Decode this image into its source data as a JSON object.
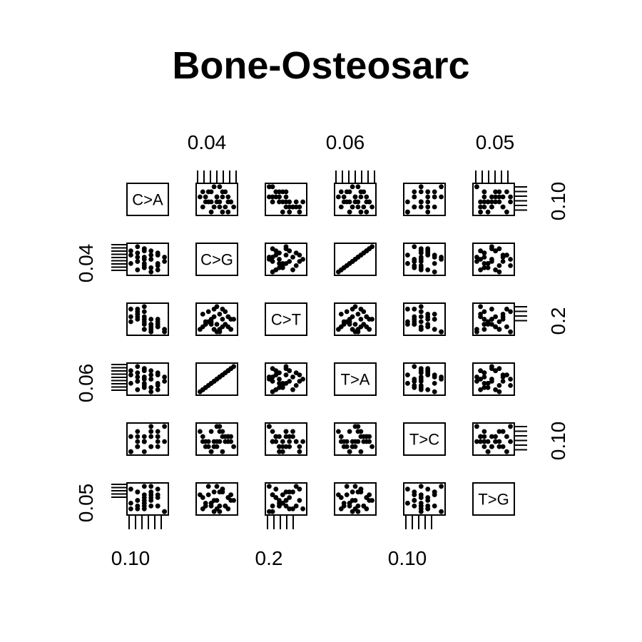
{
  "chart_data": {
    "type": "scatter",
    "title": "Bone-Osteosarc",
    "variables": [
      "C>A",
      "C>G",
      "C>T",
      "T>A",
      "T>C",
      "T>G"
    ],
    "layout": "pairs-matrix",
    "axes": {
      "top": [
        {
          "column": 2,
          "label": "0.04"
        },
        {
          "column": 4,
          "label": "0.06"
        },
        {
          "column": 6,
          "label": "0.05"
        }
      ],
      "bottom": [
        {
          "column": 1,
          "label": "0.10"
        },
        {
          "column": 3,
          "label": "0.2"
        },
        {
          "column": 5,
          "label": "0.10"
        }
      ],
      "left": [
        {
          "row": 2,
          "label": "0.04"
        },
        {
          "row": 4,
          "label": "0.06"
        },
        {
          "row": 6,
          "label": "0.05"
        }
      ],
      "right": [
        {
          "row": 1,
          "label": "0.10"
        },
        {
          "row": 3,
          "label": "0.2"
        },
        {
          "row": 5,
          "label": "0.10"
        }
      ]
    },
    "points": [
      [
        0.09,
        0.035,
        0.28,
        0.055,
        0.11,
        0.045
      ],
      [
        0.11,
        0.04,
        0.24,
        0.06,
        0.09,
        0.048
      ],
      [
        0.1,
        0.045,
        0.22,
        0.065,
        0.1,
        0.05
      ],
      [
        0.12,
        0.038,
        0.26,
        0.058,
        0.12,
        0.046
      ],
      [
        0.08,
        0.042,
        0.3,
        0.062,
        0.08,
        0.052
      ],
      [
        0.1,
        0.036,
        0.25,
        0.056,
        0.1,
        0.047
      ],
      [
        0.11,
        0.044,
        0.23,
        0.064,
        0.11,
        0.049
      ],
      [
        0.09,
        0.039,
        0.27,
        0.059,
        0.09,
        0.051
      ],
      [
        0.13,
        0.041,
        0.21,
        0.061,
        0.13,
        0.044
      ],
      [
        0.1,
        0.037,
        0.29,
        0.057,
        0.1,
        0.053
      ],
      [
        0.12,
        0.043,
        0.24,
        0.063,
        0.11,
        0.046
      ],
      [
        0.09,
        0.046,
        0.26,
        0.066,
        0.09,
        0.048
      ],
      [
        0.11,
        0.034,
        0.22,
        0.054,
        0.12,
        0.05
      ],
      [
        0.1,
        0.04,
        0.31,
        0.06,
        0.1,
        0.045
      ],
      [
        0.08,
        0.038,
        0.25,
        0.058,
        0.08,
        0.047
      ],
      [
        0.12,
        0.042,
        0.23,
        0.062,
        0.11,
        0.052
      ],
      [
        0.1,
        0.044,
        0.27,
        0.064,
        0.1,
        0.049
      ],
      [
        0.11,
        0.036,
        0.24,
        0.056,
        0.09,
        0.046
      ],
      [
        0.09,
        0.041,
        0.28,
        0.061,
        0.12,
        0.051
      ],
      [
        0.13,
        0.039,
        0.22,
        0.059,
        0.1,
        0.044
      ],
      [
        0.1,
        0.045,
        0.26,
        0.065,
        0.11,
        0.048
      ],
      [
        0.12,
        0.037,
        0.25,
        0.057,
        0.09,
        0.05
      ],
      [
        0.09,
        0.043,
        0.29,
        0.063,
        0.1,
        0.046
      ],
      [
        0.11,
        0.04,
        0.21,
        0.06,
        0.13,
        0.053
      ],
      [
        0.1,
        0.038,
        0.24,
        0.058,
        0.08,
        0.047
      ],
      [
        0.08,
        0.044,
        0.27,
        0.064,
        0.11,
        0.045
      ],
      [
        0.12,
        0.035,
        0.23,
        0.055,
        0.1,
        0.049
      ],
      [
        0.11,
        0.042,
        0.26,
        0.062,
        0.12,
        0.051
      ],
      [
        0.09,
        0.039,
        0.3,
        0.059,
        0.09,
        0.048
      ],
      [
        0.1,
        0.041,
        0.22,
        0.061,
        0.1,
        0.046
      ]
    ]
  }
}
